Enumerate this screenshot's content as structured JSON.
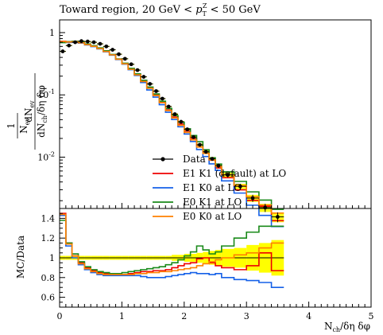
{
  "chart_data": {
    "type": "line",
    "title": "Toward region, 20 GeV < p_T^Z < 50 GeV",
    "xlabel": "N_ch / δη δφ",
    "ylabel_main": "1/N_ev dN_ev / dN_ch/δη δφ",
    "ylabel_ratio": "MC/Data",
    "xlim": [
      0,
      5
    ],
    "x_ticks": [
      "0",
      "1",
      "2",
      "3",
      "4",
      "5"
    ],
    "main": {
      "yscale": "log",
      "ylim": [
        0.0015,
        1.6
      ],
      "y_ticks": [
        "1",
        "10^-1",
        "10^-2"
      ]
    },
    "ratio": {
      "ylim": [
        0.5,
        1.5
      ],
      "y_ticks": [
        "0.6",
        "0.8",
        "1",
        "1.2",
        "1.4"
      ]
    },
    "legend_position": "lower-center",
    "bin_edges": [
      0.0,
      0.1,
      0.2,
      0.3,
      0.4,
      0.5,
      0.6,
      0.7,
      0.8,
      0.9,
      1.0,
      1.1,
      1.2,
      1.3,
      1.4,
      1.5,
      1.6,
      1.7,
      1.8,
      1.9,
      2.0,
      2.1,
      2.2,
      2.3,
      2.4,
      2.5,
      2.6,
      2.8,
      3.0,
      3.2,
      3.4,
      3.6
    ],
    "data": {
      "name": "Data",
      "color": "#000000",
      "x": [
        0.05,
        0.15,
        0.25,
        0.35,
        0.45,
        0.55,
        0.65,
        0.75,
        0.85,
        0.95,
        1.05,
        1.15,
        1.25,
        1.35,
        1.45,
        1.55,
        1.65,
        1.75,
        1.85,
        1.95,
        2.05,
        2.15,
        2.25,
        2.35,
        2.45,
        2.55,
        2.7,
        2.9,
        3.1,
        3.3,
        3.5
      ],
      "y": [
        0.5,
        0.62,
        0.7,
        0.73,
        0.72,
        0.7,
        0.66,
        0.6,
        0.53,
        0.45,
        0.38,
        0.31,
        0.25,
        0.195,
        0.15,
        0.115,
        0.087,
        0.065,
        0.049,
        0.037,
        0.028,
        0.021,
        0.0158,
        0.0122,
        0.0094,
        0.0073,
        0.0052,
        0.0034,
        0.0022,
        0.00155,
        0.0011
      ],
      "rel_err": [
        0.02,
        0.02,
        0.02,
        0.02,
        0.02,
        0.02,
        0.02,
        0.02,
        0.02,
        0.02,
        0.02,
        0.02,
        0.02,
        0.02,
        0.02,
        0.02,
        0.02,
        0.02,
        0.03,
        0.03,
        0.03,
        0.04,
        0.05,
        0.06,
        0.07,
        0.08,
        0.09,
        0.1,
        0.13,
        0.15,
        0.18
      ]
    },
    "series": [
      {
        "name": "E1 K1 (default) at LO",
        "color": "#ee0000",
        "ratio": [
          1.45,
          1.15,
          1.02,
          0.95,
          0.9,
          0.87,
          0.85,
          0.84,
          0.83,
          0.83,
          0.83,
          0.84,
          0.85,
          0.86,
          0.86,
          0.87,
          0.87,
          0.88,
          0.9,
          0.92,
          0.94,
          0.95,
          0.99,
          1.0,
          0.95,
          0.92,
          0.9,
          0.88,
          0.92,
          1.05,
          0.87
        ]
      },
      {
        "name": "E1 K0 at LO",
        "color": "#1560e8",
        "ratio": [
          1.43,
          1.12,
          1.0,
          0.93,
          0.88,
          0.85,
          0.83,
          0.82,
          0.82,
          0.82,
          0.82,
          0.82,
          0.82,
          0.81,
          0.8,
          0.8,
          0.8,
          0.81,
          0.82,
          0.83,
          0.84,
          0.85,
          0.84,
          0.84,
          0.83,
          0.84,
          0.8,
          0.78,
          0.77,
          0.75,
          0.7
        ]
      },
      {
        "name": "E0 K1 at LO",
        "color": "#1a8a1a",
        "ratio": [
          1.38,
          1.15,
          1.04,
          0.96,
          0.91,
          0.88,
          0.86,
          0.85,
          0.84,
          0.84,
          0.85,
          0.86,
          0.87,
          0.88,
          0.89,
          0.9,
          0.91,
          0.93,
          0.95,
          0.98,
          1.02,
          1.06,
          1.12,
          1.08,
          1.04,
          1.06,
          1.12,
          1.2,
          1.26,
          1.32,
          1.32
        ]
      },
      {
        "name": "E0 K0 at LO",
        "color": "#ff8000",
        "ratio": [
          1.44,
          1.14,
          1.02,
          0.94,
          0.89,
          0.86,
          0.84,
          0.83,
          0.83,
          0.83,
          0.83,
          0.83,
          0.84,
          0.84,
          0.85,
          0.85,
          0.86,
          0.86,
          0.87,
          0.88,
          0.89,
          0.9,
          0.92,
          0.94,
          0.96,
          0.98,
          1.0,
          1.03,
          1.05,
          1.1,
          1.15
        ]
      }
    ],
    "uncertainty_band": {
      "color": "#ffff00",
      "rel": [
        0.02,
        0.02,
        0.02,
        0.02,
        0.02,
        0.02,
        0.02,
        0.02,
        0.02,
        0.02,
        0.02,
        0.02,
        0.02,
        0.02,
        0.02,
        0.02,
        0.02,
        0.02,
        0.03,
        0.03,
        0.04,
        0.04,
        0.05,
        0.06,
        0.07,
        0.08,
        0.09,
        0.1,
        0.13,
        0.15,
        0.18
      ]
    }
  }
}
